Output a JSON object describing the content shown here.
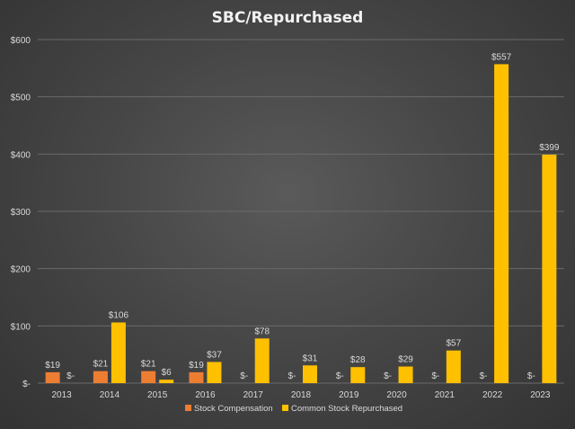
{
  "chart_data": {
    "type": "bar",
    "title": "SBC/Repurchased",
    "categories": [
      "2013",
      "2014",
      "2015",
      "2016",
      "2017",
      "2018",
      "2019",
      "2020",
      "2021",
      "2022",
      "2023"
    ],
    "series": [
      {
        "name": "Stock Compensation",
        "color": "#ed7d31",
        "values": [
          19,
          21,
          21,
          19,
          0,
          0,
          0,
          0,
          0,
          0,
          0
        ],
        "labels": [
          "$19",
          "$21",
          "$21",
          "$19",
          "$-",
          "$-",
          "$-",
          "$-",
          "$-",
          "$-",
          "$-"
        ]
      },
      {
        "name": "Common Stock Repurchased",
        "color": "#ffc000",
        "values": [
          0,
          106,
          6,
          37,
          78,
          31,
          28,
          29,
          57,
          557,
          399
        ],
        "labels": [
          "$-",
          "$106",
          "$6",
          "$37",
          "$78",
          "$31",
          "$28",
          "$29",
          "$57",
          "$557",
          "$399"
        ]
      }
    ],
    "ylim": [
      0,
      600
    ],
    "yticks": [
      0,
      100,
      200,
      300,
      400,
      500,
      600
    ],
    "ytick_labels": [
      "$-",
      "$100",
      "$200",
      "$300",
      "$400",
      "$500",
      "$600"
    ],
    "grid": true,
    "legend": "bottom"
  }
}
